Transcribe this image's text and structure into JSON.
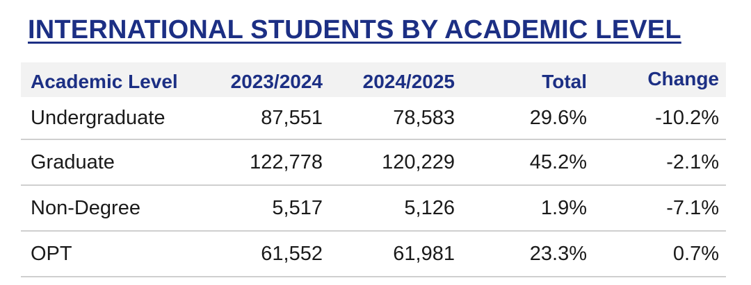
{
  "title": "INTERNATIONAL STUDENTS BY ACADEMIC LEVEL",
  "colors": {
    "title": "#1c2f84",
    "header_text": "#1c2f84",
    "header_bg": "#f2f2f2",
    "row_divider": "#cfcfcf"
  },
  "table": {
    "headers": [
      "Academic Level",
      "2023/2024",
      "2024/2025",
      "Total",
      "Change"
    ],
    "rows": [
      [
        "Undergraduate",
        "87,551",
        "78,583",
        "29.6%",
        "-10.2%"
      ],
      [
        "Graduate",
        "122,778",
        "120,229",
        "45.2%",
        "-2.1%"
      ],
      [
        "Non-Degree",
        "5,517",
        "5,126",
        "1.9%",
        "-7.1%"
      ],
      [
        "OPT",
        "61,552",
        "61,981",
        "23.3%",
        "0.7%"
      ]
    ]
  }
}
